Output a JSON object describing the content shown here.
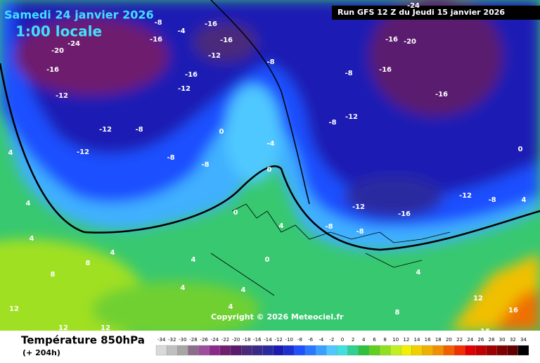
{
  "header": {
    "date": "Samedi 24 janvier 2026",
    "time": "1:00 locale",
    "run": "Run GFS 12 Z du Jeudi 15 janvier 2026"
  },
  "copyright": "Copyright © 2026 Meteociel.fr",
  "footer": {
    "title": "Température 850hPa",
    "lead": "(+ 204h)"
  },
  "legend": {
    "values": [
      -34,
      -32,
      -30,
      -28,
      -26,
      -24,
      -22,
      -20,
      -18,
      -16,
      -14,
      -12,
      -10,
      -8,
      -6,
      -4,
      -2,
      0,
      2,
      4,
      6,
      8,
      10,
      12,
      14,
      16,
      18,
      20,
      22,
      24,
      26,
      28,
      30,
      32,
      34
    ],
    "colors": [
      "#d9d9d9",
      "#c0c0c0",
      "#a6a6a6",
      "#8c6e8c",
      "#9b4f9b",
      "#8a2a8a",
      "#6e1f6e",
      "#5a1a6e",
      "#4a2a7a",
      "#3a2a8a",
      "#2a2aa0",
      "#1a1ab4",
      "#1a30d0",
      "#1e50ff",
      "#2a78ff",
      "#3aa0ff",
      "#50c8ff",
      "#40e0e0",
      "#30d090",
      "#30c040",
      "#60d020",
      "#90e020",
      "#c0f020",
      "#f0f000",
      "#f0d000",
      "#f0b000",
      "#f09000",
      "#f06000",
      "#f03000",
      "#e00000",
      "#c00000",
      "#a00000",
      "#800000",
      "#600000",
      "#000000"
    ]
  },
  "contour_labels": [
    -20,
    -24,
    -16,
    -12,
    -12,
    -12,
    -8,
    -8,
    -8,
    -16,
    -4,
    -16,
    -16,
    -12,
    -16,
    -12,
    -8,
    -8,
    -4,
    0,
    0,
    -16,
    -20,
    -16,
    -8,
    -16,
    -12,
    -8,
    -12,
    -8,
    -16,
    -8,
    0,
    4,
    4,
    8,
    0,
    4,
    4,
    4,
    4,
    4,
    8,
    12,
    16,
    12,
    12,
    4,
    4,
    4,
    8,
    -12,
    -8,
    4,
    0,
    12,
    16,
    -24
  ]
}
